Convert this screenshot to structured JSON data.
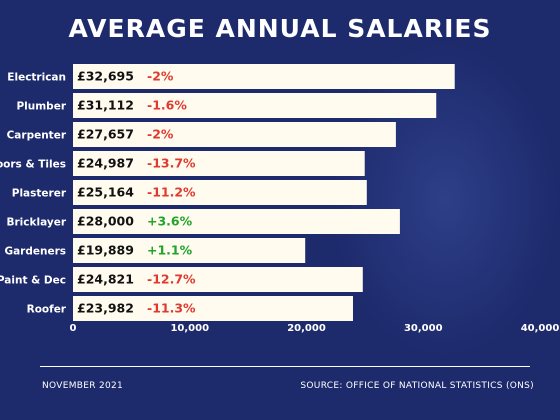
{
  "header": {
    "title": "AVERAGE ANNUAL SALARIES"
  },
  "footer": {
    "date": "NOVEMBER 2021",
    "source": "SOURCE: OFFICE OF NATIONAL STATISTICS (ONS)"
  },
  "colors": {
    "background": "#1d2a6c",
    "bar": "#fffbef",
    "negative": "#e03a2f",
    "positive": "#22a32a",
    "text": "#ffffff"
  },
  "chart_data": {
    "type": "bar",
    "orientation": "horizontal",
    "title": "AVERAGE ANNUAL SALARIES",
    "categories": [
      "Electrican",
      "Plumber",
      "Carpenter",
      "Floors & Tiles",
      "Plasterer",
      "Bricklayer",
      "Gardeners",
      "Paint & Dec",
      "Roofer"
    ],
    "values": [
      32695,
      31112,
      27657,
      24987,
      25164,
      28000,
      19889,
      24821,
      23982
    ],
    "value_labels": [
      "£32,695",
      "£31,112",
      "£27,657",
      "£24,987",
      "£25,164",
      "£28,000",
      "£19,889",
      "£24,821",
      "£23,982"
    ],
    "changes": [
      "-2%",
      "-1.6%",
      "-2%",
      "-13.7%",
      "-11.2%",
      "+3.6%",
      "+1.1%",
      "-12.7%",
      "-11.3%"
    ],
    "xlim": [
      0,
      40000
    ],
    "xticks": [
      0,
      10000,
      20000,
      30000,
      40000
    ],
    "xtick_labels": [
      "0",
      "10,000",
      "20,000",
      "30,000",
      "40,000"
    ],
    "grid": false,
    "legend": "none"
  }
}
